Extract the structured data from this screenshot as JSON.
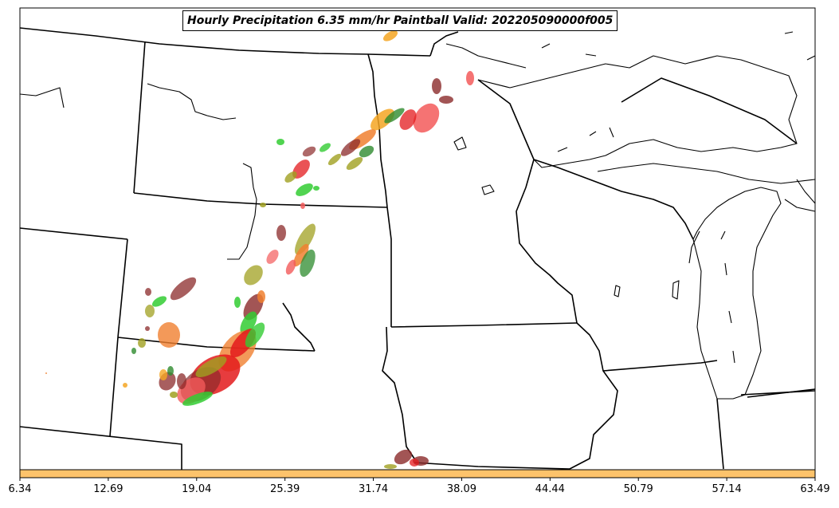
{
  "title": "Hourly Precipitation 6.35 mm/hr Paintball Valid: 202205090000f005",
  "colorbar": {
    "ticks": [
      "6.34",
      "12.69",
      "19.04",
      "25.39",
      "31.74",
      "38.09",
      "44.44",
      "50.79",
      "57.14",
      "63.49"
    ],
    "color": "#fdc36b"
  },
  "paintball_colors": [
    "#e31a1c",
    "#f35a5a",
    "#f08030",
    "#f5a623",
    "#a0a020",
    "#2e8b2e",
    "#33cc33",
    "#8b2a2a"
  ],
  "icon_names": [
    "state-borders",
    "coastlines",
    "paintball-blobs"
  ]
}
